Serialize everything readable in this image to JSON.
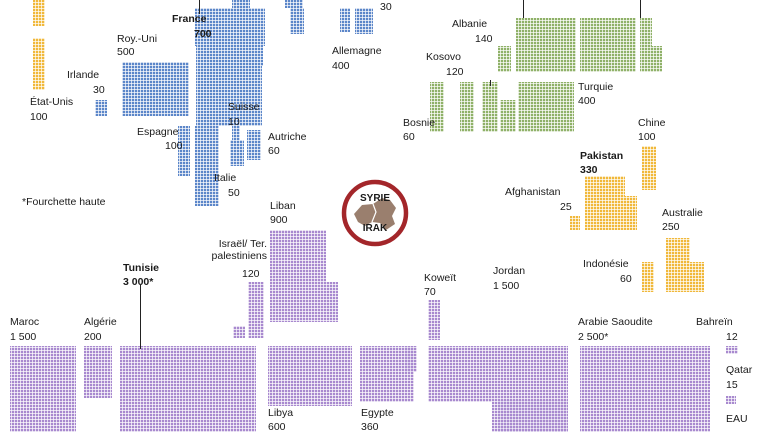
{
  "chart_data": {
    "type": "waffle",
    "title": "",
    "center_logo": {
      "top": "SYRIE",
      "bottom": "IRAK"
    },
    "footnote": "*Fourchette haute",
    "colors": {
      "europe": "#5b86c9",
      "balkans": "#8fb168",
      "asia": "#f1b83a",
      "arab": "#a889cf"
    },
    "countries": [
      {
        "name": "France",
        "value_label": "700",
        "bold": true,
        "region": "europe"
      },
      {
        "name": "Roy.-Uni",
        "value_label": "500",
        "region": "europe"
      },
      {
        "name": "Irlande",
        "value_label": "30",
        "region": "europe"
      },
      {
        "name": "Allemagne",
        "value_label": "400",
        "region": "europe"
      },
      {
        "name": "Espagne",
        "value_label": "100",
        "region": "europe"
      },
      {
        "name": "Suisse",
        "value_label": "10",
        "region": "europe"
      },
      {
        "name": "Autriche",
        "value_label": "60",
        "region": "europe"
      },
      {
        "name": "Italie",
        "value_label": "50",
        "region": "europe"
      },
      {
        "name": "",
        "value_label": "30",
        "region": "europe"
      },
      {
        "name": "État-Unis",
        "value_label": "100",
        "region": "asia"
      },
      {
        "name": "Albanie",
        "value_label": "140",
        "region": "balkans"
      },
      {
        "name": "Kosovo",
        "value_label": "120",
        "region": "balkans"
      },
      {
        "name": "Bosnie",
        "value_label": "60",
        "region": "balkans"
      },
      {
        "name": "Turquie",
        "value_label": "400",
        "region": "balkans"
      },
      {
        "name": "Chine",
        "value_label": "100",
        "region": "asia"
      },
      {
        "name": "Pakistan",
        "value_label": "330",
        "bold": true,
        "region": "asia"
      },
      {
        "name": "Afghanistan",
        "value_label": "25",
        "region": "asia"
      },
      {
        "name": "Australie",
        "value_label": "250",
        "region": "asia"
      },
      {
        "name": "Indonésie",
        "value_label": "60",
        "region": "asia"
      },
      {
        "name": "Liban",
        "value_label": "900",
        "region": "arab"
      },
      {
        "name": "Israël/ Ter. palestiniens",
        "value_label": "120",
        "region": "arab"
      },
      {
        "name": "Tunisie",
        "value_label": "3 000*",
        "bold": true,
        "region": "arab"
      },
      {
        "name": "Maroc",
        "value_label": "1 500",
        "region": "arab"
      },
      {
        "name": "Algérie",
        "value_label": "200",
        "region": "arab"
      },
      {
        "name": "Libya",
        "value_label": "600",
        "region": "arab"
      },
      {
        "name": "Egypte",
        "value_label": "360",
        "region": "arab"
      },
      {
        "name": "Koweït",
        "value_label": "70",
        "region": "arab"
      },
      {
        "name": "Jordan",
        "value_label": "1 500",
        "region": "arab"
      },
      {
        "name": "Arabie Saoudite",
        "value_label": "2 500*",
        "region": "arab"
      },
      {
        "name": "Bahreïn",
        "value_label": "12",
        "region": "arab"
      },
      {
        "name": "Qatar",
        "value_label": "15",
        "region": "arab"
      },
      {
        "name": "EAU",
        "value_label": "",
        "region": "arab"
      }
    ]
  }
}
